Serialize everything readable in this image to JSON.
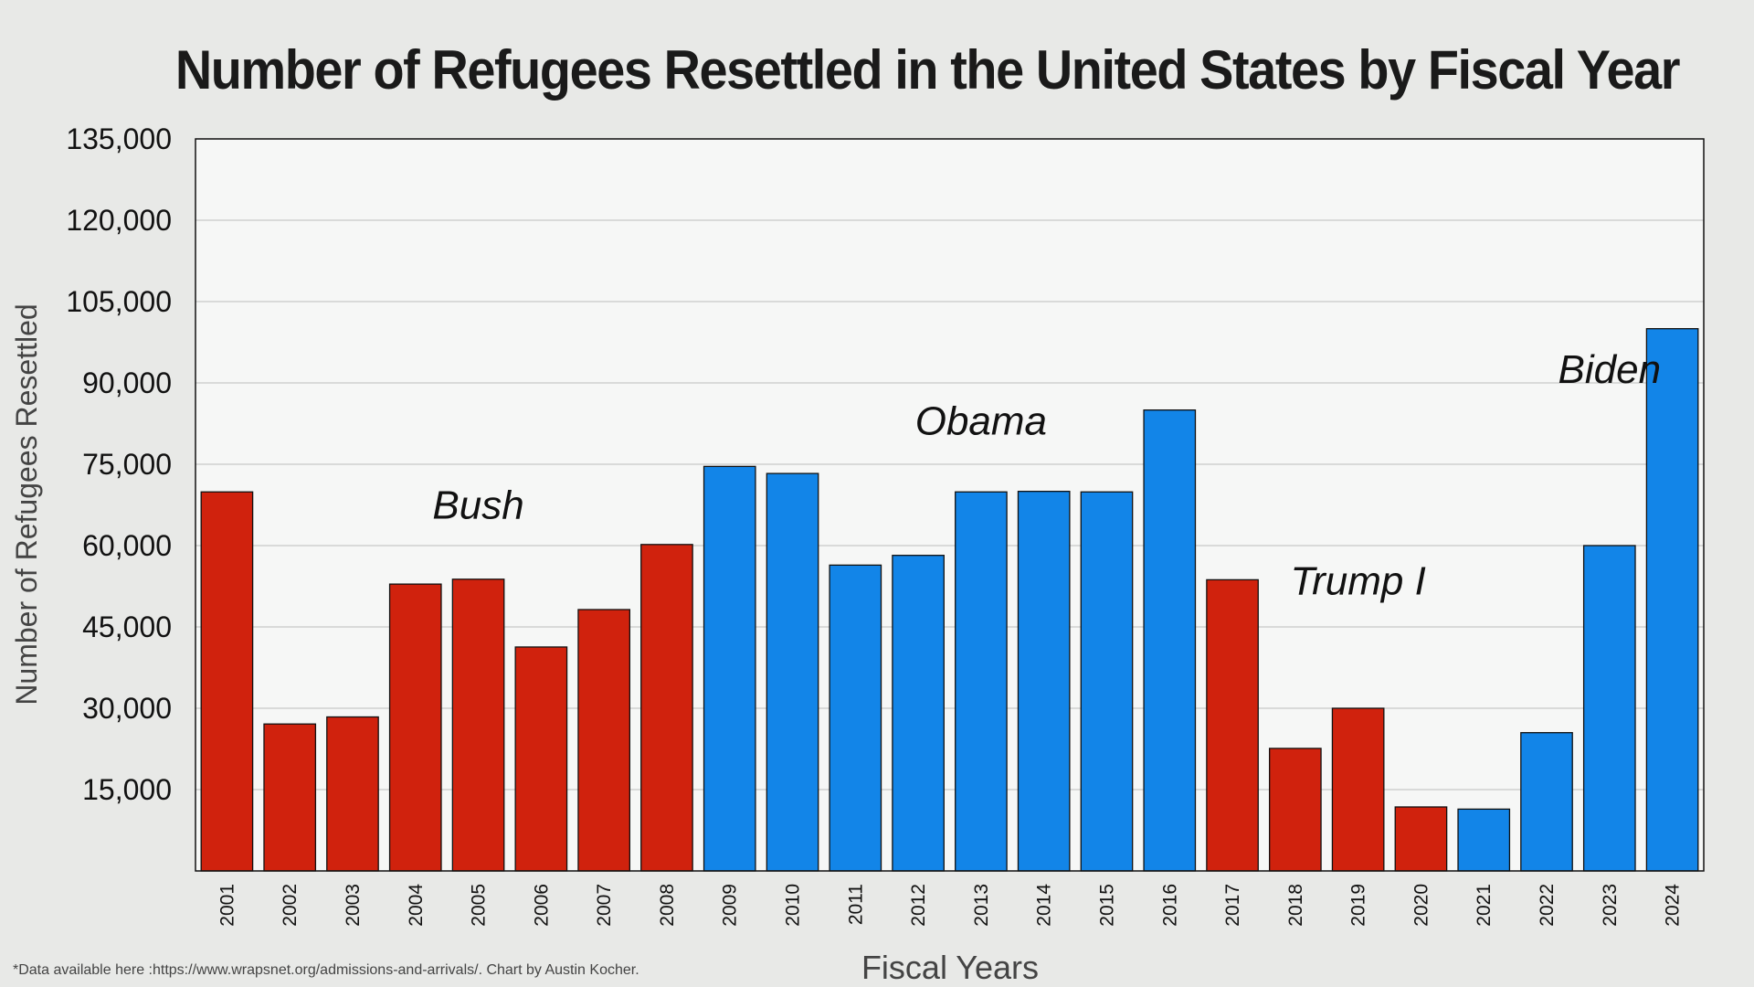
{
  "chart_data": {
    "type": "bar",
    "title": "Number of Refugees Resettled in the United States by Fiscal Year",
    "xlabel": "Fiscal Years",
    "ylabel": "Number of Refugees Resettled",
    "ylim": [
      0,
      135000
    ],
    "yticks": [
      15000,
      30000,
      45000,
      60000,
      75000,
      90000,
      105000,
      120000,
      135000
    ],
    "ytick_labels": [
      "15,000",
      "30,000",
      "45,000",
      "60,000",
      "75,000",
      "90,000",
      "105,000",
      "120,000",
      "135,000"
    ],
    "grid": true,
    "categories": [
      "2001",
      "2002",
      "2003",
      "2004",
      "2005",
      "2006",
      "2007",
      "2008",
      "2009",
      "2010",
      "2011",
      "2012",
      "2013",
      "2014",
      "2015",
      "2016",
      "2017",
      "2018",
      "2019",
      "2020",
      "2021",
      "2022",
      "2023",
      "2024"
    ],
    "values": [
      69900,
      27100,
      28400,
      52900,
      53800,
      41300,
      48200,
      60200,
      74600,
      73300,
      56400,
      58200,
      69900,
      70000,
      69900,
      85000,
      53700,
      22600,
      30000,
      11800,
      11400,
      25500,
      60000,
      100000
    ],
    "bar_colors": [
      "#d0220d",
      "#d0220d",
      "#d0220d",
      "#d0220d",
      "#d0220d",
      "#d0220d",
      "#d0220d",
      "#d0220d",
      "#1285e8",
      "#1285e8",
      "#1285e8",
      "#1285e8",
      "#1285e8",
      "#1285e8",
      "#1285e8",
      "#1285e8",
      "#d0220d",
      "#d0220d",
      "#d0220d",
      "#d0220d",
      "#1285e8",
      "#1285e8",
      "#1285e8",
      "#1285e8"
    ],
    "annotations": [
      {
        "text": "Bush",
        "x": "2005",
        "y": 65000
      },
      {
        "text": "Obama",
        "x": "2013",
        "y": 80500
      },
      {
        "text": "Trump I",
        "x": "2019",
        "y": 51000
      },
      {
        "text": "Biden",
        "x": "2023",
        "y": 90000
      }
    ],
    "colors": {
      "republican": "#d0220d",
      "democrat": "#1285e8",
      "plot_bg": "#f6f7f6",
      "page_bg": "#e8e9e7",
      "grid": "#c8c8c8"
    }
  },
  "footnote": "*Data available here :https://www.wrapsnet.org/admissions-and-arrivals/. Chart by Austin Kocher."
}
